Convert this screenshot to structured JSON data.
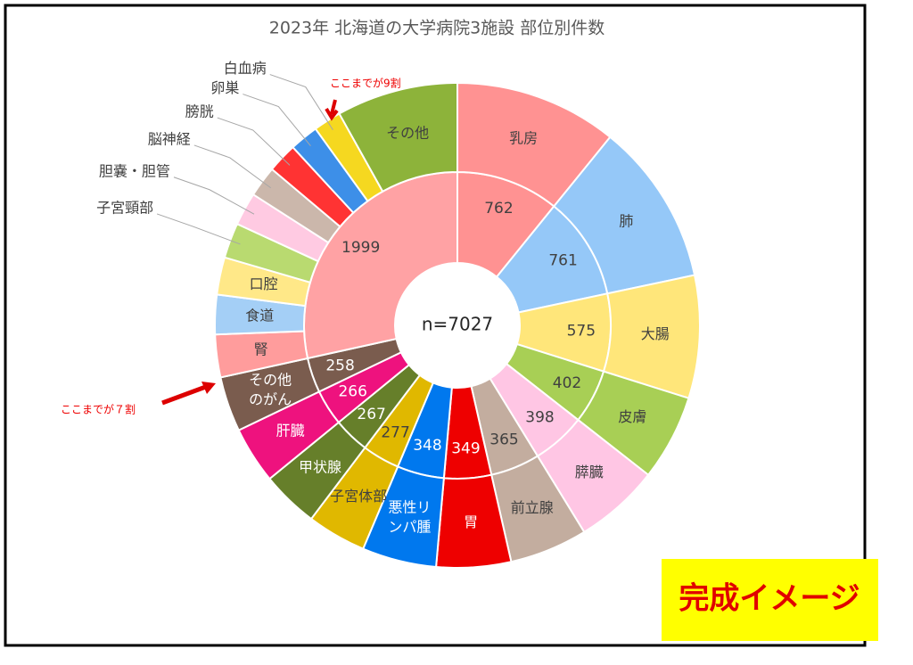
{
  "chart_data": {
    "type": "sunburst",
    "title": "2023年 北海道の大学病院3施設 部位別件数",
    "center_label": "n=7027",
    "nodes": [
      {
        "name": "乳房",
        "value": 762,
        "color": "#ff9292"
      },
      {
        "name": "肺",
        "value": 761,
        "color": "#95c8f8"
      },
      {
        "name": "大腸",
        "value": 575,
        "color": "#ffe67a"
      },
      {
        "name": "皮膚",
        "value": 402,
        "color": "#a8cf55"
      },
      {
        "name": "膵臓",
        "value": 398,
        "color": "#ffc6e4"
      },
      {
        "name": "前立腺",
        "value": 365,
        "color": "#c3ad9f"
      },
      {
        "name": "胃",
        "value": 349,
        "color": "#ee0000"
      },
      {
        "name": "悪性リンパ腫",
        "value": 348,
        "color": "#0078ee"
      },
      {
        "name": "子宮体部",
        "value": 277,
        "color": "#e0b800"
      },
      {
        "name": "甲状腺",
        "value": 267,
        "color": "#667f2a"
      },
      {
        "name": "肝臓",
        "value": 266,
        "color": "#ee127e"
      },
      {
        "name": "その他のがん",
        "value": 258,
        "color": "#7a5c4e"
      },
      {
        "name": null,
        "value": 1999,
        "color": "#ffa2a4",
        "children": [
          {
            "name": "腎",
            "value": 200,
            "color": "#ff9c9c"
          },
          {
            "name": "食道",
            "value": 185,
            "color": "#a4cff6"
          },
          {
            "name": "口腔",
            "value": 175,
            "color": "#ffe888"
          },
          {
            "name": "子宮頸部",
            "value": 165,
            "color": "#b9da70"
          },
          {
            "name": "胆嚢・胆管",
            "value": 155,
            "color": "#ffcae2"
          },
          {
            "name": "脳神経",
            "value": 145,
            "color": "#cbb7ab"
          },
          {
            "name": "膀胱",
            "value": 140,
            "color": "#ff3333"
          },
          {
            "name": "卵巣",
            "value": 135,
            "color": "#3d8fe8"
          },
          {
            "name": "白血病",
            "value": 130,
            "color": "#f5d820"
          },
          {
            "name": "その他",
            "value": 569,
            "color": "#8db33a"
          }
        ]
      }
    ],
    "annotations": [
      "ここまでが9割",
      "ここまでが７割"
    ]
  },
  "badge": "完成イメージ"
}
